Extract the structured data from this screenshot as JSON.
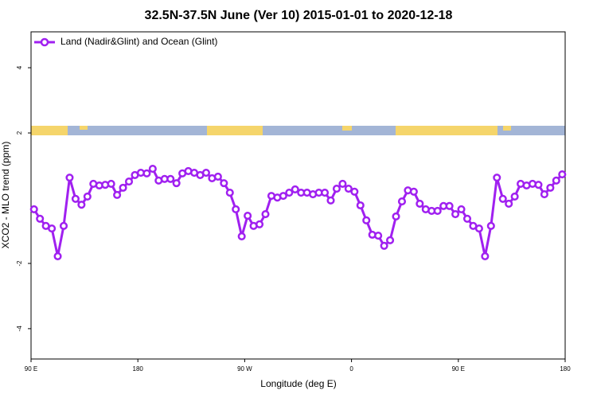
{
  "chart_data": {
    "type": "line",
    "title": "32.5N-37.5N June (Ver 10)   2015-01-01 to 2020-12-18",
    "x_label": "Longitude (deg E)",
    "y_label": "XCO2 - MLO trend (ppm)",
    "xlim": [
      90,
      540
    ],
    "ylim": [
      -4.93,
      5.1
    ],
    "xticks": [
      {
        "value": 90,
        "label": "90 E"
      },
      {
        "value": 180,
        "label": "180"
      },
      {
        "value": 270,
        "label": "90 W"
      },
      {
        "value": 360,
        "label": "0"
      },
      {
        "value": 450,
        "label": "90 E"
      },
      {
        "value": 540,
        "label": "180"
      }
    ],
    "yticks": [
      -4,
      -2,
      2,
      4
    ],
    "legend": "top-left",
    "x": [
      92.5,
      97.5,
      102.5,
      107.5,
      112.5,
      117.5,
      122.5,
      127.5,
      132.5,
      137.5,
      142.5,
      147.5,
      152.5,
      157.5,
      162.5,
      167.5,
      172.5,
      177.5,
      182.5,
      187.5,
      192.5,
      197.5,
      202.5,
      207.5,
      212.5,
      217.5,
      222.5,
      227.5,
      232.5,
      237.5,
      242.5,
      247.5,
      252.5,
      257.5,
      262.5,
      267.5,
      272.5,
      277.5,
      282.5,
      287.5,
      292.5,
      297.5,
      302.5,
      307.5,
      312.5,
      317.5,
      322.5,
      327.5,
      332.5,
      337.5,
      342.5,
      347.5,
      352.5,
      357.5,
      362.5,
      367.5,
      372.5,
      377.5,
      382.5,
      387.5,
      392.5,
      397.5,
      402.5,
      407.5,
      412.5,
      417.5,
      422.5,
      427.5,
      432.5,
      437.5,
      442.5,
      447.5,
      452.5,
      457.5,
      462.5,
      467.5,
      472.5,
      477.5,
      482.5,
      487.5,
      492.5,
      497.5,
      502.5,
      507.5,
      512.5,
      517.5,
      522.5,
      527.5,
      532.5,
      537.5
    ],
    "series": [
      {
        "name": "Land (Nadir&Glint) and Ocean (Glint)",
        "color": "#a020f0",
        "values": [
          -0.34,
          -0.63,
          -0.85,
          -0.93,
          -1.78,
          -0.85,
          0.63,
          -0.02,
          -0.2,
          0.05,
          0.44,
          0.39,
          0.41,
          0.44,
          0.1,
          0.32,
          0.51,
          0.71,
          0.78,
          0.76,
          0.9,
          0.54,
          0.59,
          0.59,
          0.46,
          0.76,
          0.83,
          0.78,
          0.71,
          0.78,
          0.61,
          0.66,
          0.46,
          0.17,
          -0.34,
          -1.17,
          -0.54,
          -0.85,
          -0.8,
          -0.49,
          0.07,
          0.02,
          0.07,
          0.17,
          0.27,
          0.17,
          0.17,
          0.12,
          0.17,
          0.17,
          -0.07,
          0.29,
          0.44,
          0.29,
          0.2,
          -0.22,
          -0.68,
          -1.12,
          -1.15,
          -1.46,
          -1.29,
          -0.56,
          -0.1,
          0.24,
          0.2,
          -0.17,
          -0.34,
          -0.39,
          -0.39,
          -0.24,
          -0.24,
          -0.49,
          -0.34,
          -0.63,
          -0.85,
          -0.93,
          -1.78,
          -0.85,
          0.63,
          -0.02,
          -0.17,
          0.05,
          0.44,
          0.39,
          0.44,
          0.41,
          0.12,
          0.32,
          0.54,
          0.73
        ]
      }
    ]
  }
}
